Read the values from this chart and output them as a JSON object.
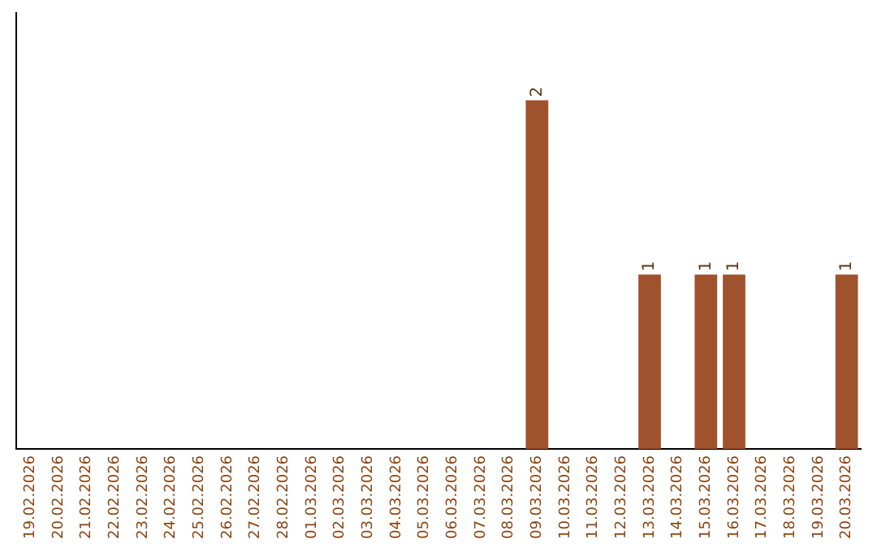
{
  "chart_data": {
    "type": "bar",
    "categories": [
      "19.02.2026",
      "20.02.2026",
      "21.02.2026",
      "22.02.2026",
      "23.02.2026",
      "24.02.2026",
      "25.02.2026",
      "26.02.2026",
      "27.02.2026",
      "28.02.2026",
      "01.03.2026",
      "02.03.2026",
      "03.03.2026",
      "04.03.2026",
      "05.03.2026",
      "06.03.2026",
      "07.03.2026",
      "08.03.2026",
      "09.03.2026",
      "10.03.2026",
      "11.03.2026",
      "12.03.2026",
      "13.03.2026",
      "14.03.2026",
      "15.03.2026",
      "16.03.2026",
      "17.03.2026",
      "18.03.2026",
      "19.03.2026",
      "20.03.2026"
    ],
    "values": [
      null,
      null,
      null,
      null,
      null,
      null,
      null,
      null,
      null,
      null,
      null,
      null,
      null,
      null,
      null,
      null,
      null,
      null,
      2,
      null,
      null,
      null,
      1,
      null,
      1,
      1,
      null,
      null,
      null,
      1
    ],
    "data_labels": true,
    "color": "#a0522d",
    "grid": false,
    "legend": false
  }
}
